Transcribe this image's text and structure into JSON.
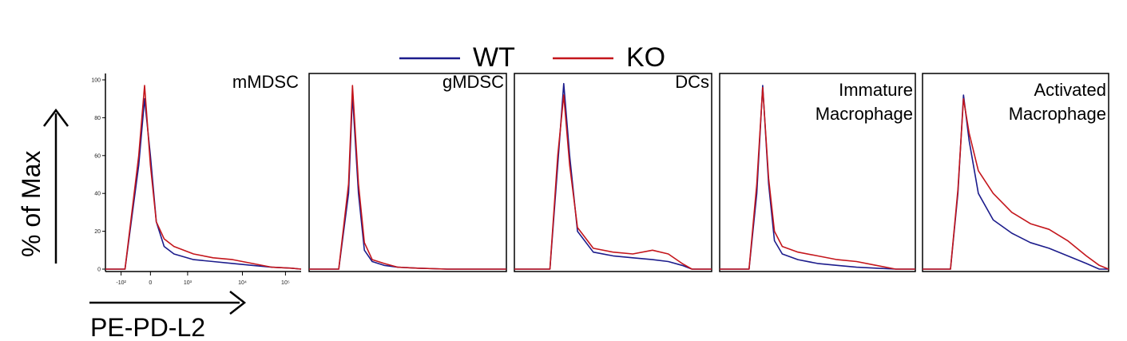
{
  "colors": {
    "wt": "#1c1c8c",
    "ko": "#c4161c"
  },
  "legend": {
    "wt_label": "WT",
    "ko_label": "KO"
  },
  "y_axis": {
    "title": "% of Max",
    "ticks": [
      "0",
      "20",
      "40",
      "60",
      "80",
      "100"
    ]
  },
  "x_axis": {
    "title": "PE-PD-L2",
    "ticks": [
      "-10²",
      "0",
      "10³",
      "10⁴",
      "10⁵"
    ]
  },
  "chart_data": [
    {
      "type": "line",
      "title": "mMDSC",
      "xlabel": "PE-PD-L2",
      "ylabel": "% of Max",
      "ylim": [
        0,
        100
      ],
      "x": [
        0,
        0.1,
        0.17,
        0.2,
        0.23,
        0.26,
        0.3,
        0.35,
        0.45,
        0.55,
        0.65,
        0.75,
        0.85,
        0.95,
        1.0
      ],
      "series": [
        {
          "name": "WT",
          "values": [
            0,
            0,
            55,
            90,
            60,
            25,
            12,
            8,
            5,
            4,
            3,
            2,
            1,
            0.5,
            0
          ]
        },
        {
          "name": "KO",
          "values": [
            0,
            0,
            60,
            97,
            55,
            25,
            16,
            12,
            8,
            6,
            5,
            3,
            1,
            0.5,
            0
          ]
        }
      ]
    },
    {
      "type": "line",
      "title": "gMDSC",
      "xlabel": "PE-PD-L2",
      "ylabel": "% of Max",
      "ylim": [
        0,
        100
      ],
      "x": [
        0,
        0.15,
        0.2,
        0.22,
        0.25,
        0.28,
        0.32,
        0.38,
        0.45,
        0.55,
        0.7,
        1.0
      ],
      "series": [
        {
          "name": "WT",
          "values": [
            0,
            0,
            40,
            92,
            40,
            10,
            4,
            2,
            1,
            0.5,
            0,
            0
          ]
        },
        {
          "name": "KO",
          "values": [
            0,
            0,
            45,
            97,
            45,
            14,
            5,
            3,
            1,
            0.5,
            0,
            0
          ]
        }
      ]
    },
    {
      "type": "line",
      "title": "DCs",
      "xlabel": "PE-PD-L2",
      "ylabel": "% of Max",
      "ylim": [
        0,
        100
      ],
      "x": [
        0,
        0.18,
        0.22,
        0.25,
        0.28,
        0.32,
        0.4,
        0.5,
        0.6,
        0.7,
        0.78,
        0.85,
        0.9,
        1.0
      ],
      "series": [
        {
          "name": "WT",
          "values": [
            0,
            0,
            55,
            98,
            60,
            20,
            9,
            7,
            6,
            5,
            4,
            2,
            0,
            0
          ]
        },
        {
          "name": "KO",
          "values": [
            0,
            0,
            60,
            92,
            55,
            22,
            11,
            9,
            8,
            10,
            8,
            3,
            0,
            0
          ]
        }
      ]
    },
    {
      "type": "line",
      "title": "Immature Macrophage",
      "xlabel": "PE-PD-L2",
      "ylabel": "% of Max",
      "ylim": [
        0,
        100
      ],
      "x": [
        0,
        0.15,
        0.19,
        0.22,
        0.25,
        0.28,
        0.32,
        0.4,
        0.5,
        0.6,
        0.7,
        0.8,
        0.9,
        1.0
      ],
      "series": [
        {
          "name": "WT",
          "values": [
            0,
            0,
            40,
            97,
            45,
            15,
            8,
            5,
            3,
            2,
            1,
            0.5,
            0,
            0
          ]
        },
        {
          "name": "KO",
          "values": [
            0,
            0,
            45,
            96,
            48,
            20,
            12,
            9,
            7,
            5,
            4,
            2,
            0,
            0
          ]
        }
      ]
    },
    {
      "type": "line",
      "title": "Activated Macrophage",
      "xlabel": "PE-PD-L2",
      "ylabel": "% of Max",
      "ylim": [
        0,
        100
      ],
      "x": [
        0,
        0.15,
        0.19,
        0.22,
        0.25,
        0.3,
        0.38,
        0.48,
        0.58,
        0.68,
        0.78,
        0.88,
        0.95,
        1.0
      ],
      "series": [
        {
          "name": "WT",
          "values": [
            0,
            0,
            40,
            92,
            68,
            40,
            26,
            19,
            14,
            11,
            7,
            3,
            0,
            0
          ]
        },
        {
          "name": "KO",
          "values": [
            0,
            0,
            42,
            90,
            72,
            52,
            40,
            30,
            24,
            21,
            15,
            7,
            2,
            0
          ]
        }
      ]
    }
  ]
}
